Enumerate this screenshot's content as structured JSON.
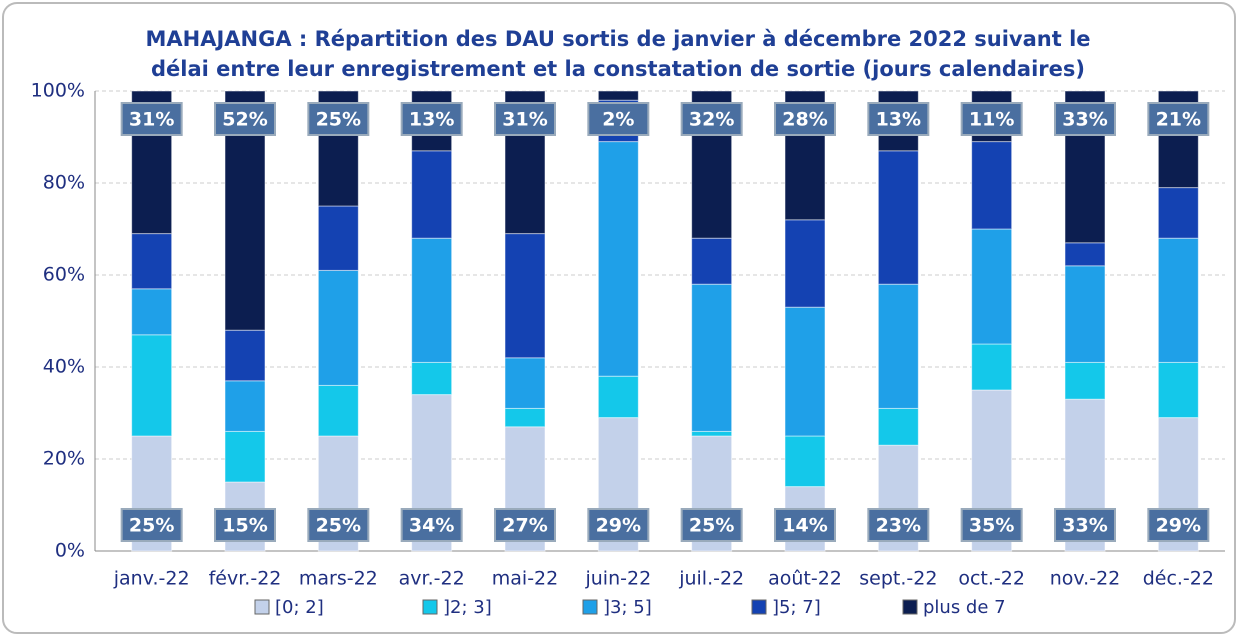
{
  "chart_data": {
    "type": "stacked_bar",
    "title": [
      "MAHAJANGA : Répartition des DAU sortis de janvier à décembre 2022 suivant le",
      "délai entre leur enregistrement et la constatation de sortie (jours calendaires)"
    ],
    "categories": [
      "janv.-22",
      "févr.-22",
      "mars-22",
      "avr.-22",
      "mai-22",
      "juin-22",
      "juil.-22",
      "août-22",
      "sept.-22",
      "oct.-22",
      "nov.-22",
      "déc.-22"
    ],
    "series": [
      {
        "name": "[0; 2]",
        "color": "#c3d1ea",
        "values": [
          25,
          15,
          25,
          34,
          27,
          29,
          25,
          14,
          23,
          35,
          33,
          29
        ],
        "value_labels": [
          "25%",
          "15%",
          "25%",
          "34%",
          "27%",
          "29%",
          "25%",
          "14%",
          "23%",
          "35%",
          "33%",
          "29%"
        ]
      },
      {
        "name": "]2; 3]",
        "color": "#14c8ea",
        "values": [
          22,
          11,
          11,
          7,
          4,
          9,
          1,
          11,
          8,
          10,
          8,
          12
        ]
      },
      {
        "name": "]3; 5]",
        "color": "#1fa0e8",
        "values": [
          10,
          11,
          25,
          27,
          11,
          51,
          32,
          28,
          27,
          25,
          21,
          27
        ]
      },
      {
        "name": "]5; 7]",
        "color": "#1442b2",
        "values": [
          12,
          11,
          14,
          19,
          27,
          9,
          10,
          19,
          29,
          19,
          5,
          11
        ]
      },
      {
        "name": "plus de 7",
        "color": "#0c1e50",
        "values": [
          31,
          52,
          25,
          13,
          31,
          2,
          32,
          28,
          13,
          11,
          33,
          21
        ],
        "value_labels": [
          "31%",
          "52%",
          "25%",
          "13%",
          "31%",
          "2%",
          "32%",
          "28%",
          "13%",
          "11%",
          "33%",
          "21%"
        ]
      }
    ],
    "ylim": [
      0,
      100
    ],
    "yticks": [
      {
        "value": 0,
        "label": "0%"
      },
      {
        "value": 20,
        "label": "20%"
      },
      {
        "value": 40,
        "label": "40%"
      },
      {
        "value": 60,
        "label": "60%"
      },
      {
        "value": 80,
        "label": "80%"
      },
      {
        "value": 100,
        "label": "100%"
      }
    ],
    "grid": true
  }
}
